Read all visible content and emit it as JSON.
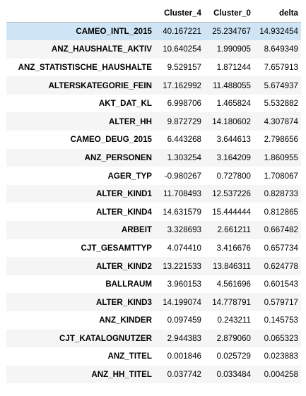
{
  "table": {
    "header": [
      "",
      "Cluster_4",
      "Cluster_0",
      "delta"
    ],
    "highlight_color": "#cfe5f5",
    "stripe_color": "#f5f5f5",
    "rows": [
      {
        "label": "CAMEO_INTL_2015",
        "cluster_4": "40.167221",
        "cluster_0": "25.234767",
        "delta": "14.932454"
      },
      {
        "label": "ANZ_HAUSHALTE_AKTIV",
        "cluster_4": "10.640254",
        "cluster_0": "1.990905",
        "delta": "8.649349"
      },
      {
        "label": "ANZ_STATISTISCHE_HAUSHALTE",
        "cluster_4": "9.529157",
        "cluster_0": "1.871244",
        "delta": "7.657913"
      },
      {
        "label": "ALTERSKATEGORIE_FEIN",
        "cluster_4": "17.162992",
        "cluster_0": "11.488055",
        "delta": "5.674937"
      },
      {
        "label": "AKT_DAT_KL",
        "cluster_4": "6.998706",
        "cluster_0": "1.465824",
        "delta": "5.532882"
      },
      {
        "label": "ALTER_HH",
        "cluster_4": "9.872729",
        "cluster_0": "14.180602",
        "delta": "4.307874"
      },
      {
        "label": "CAMEO_DEUG_2015",
        "cluster_4": "6.443268",
        "cluster_0": "3.644613",
        "delta": "2.798656"
      },
      {
        "label": "ANZ_PERSONEN",
        "cluster_4": "1.303254",
        "cluster_0": "3.164209",
        "delta": "1.860955"
      },
      {
        "label": "AGER_TYP",
        "cluster_4": "-0.980267",
        "cluster_0": "0.727800",
        "delta": "1.708067"
      },
      {
        "label": "ALTER_KIND1",
        "cluster_4": "11.708493",
        "cluster_0": "12.537226",
        "delta": "0.828733"
      },
      {
        "label": "ALTER_KIND4",
        "cluster_4": "14.631579",
        "cluster_0": "15.444444",
        "delta": "0.812865"
      },
      {
        "label": "ARBEIT",
        "cluster_4": "3.328693",
        "cluster_0": "2.661211",
        "delta": "0.667482"
      },
      {
        "label": "CJT_GESAMTTYP",
        "cluster_4": "4.074410",
        "cluster_0": "3.416676",
        "delta": "0.657734"
      },
      {
        "label": "ALTER_KIND2",
        "cluster_4": "13.221533",
        "cluster_0": "13.846311",
        "delta": "0.624778"
      },
      {
        "label": "BALLRAUM",
        "cluster_4": "3.960153",
        "cluster_0": "4.561696",
        "delta": "0.601543"
      },
      {
        "label": "ALTER_KIND3",
        "cluster_4": "14.199074",
        "cluster_0": "14.778791",
        "delta": "0.579717"
      },
      {
        "label": "ANZ_KINDER",
        "cluster_4": "0.097459",
        "cluster_0": "0.243211",
        "delta": "0.145753"
      },
      {
        "label": "CJT_KATALOGNUTZER",
        "cluster_4": "2.944383",
        "cluster_0": "2.879060",
        "delta": "0.065323"
      },
      {
        "label": "ANZ_TITEL",
        "cluster_4": "0.001846",
        "cluster_0": "0.025729",
        "delta": "0.023883"
      },
      {
        "label": "ANZ_HH_TITEL",
        "cluster_4": "0.037742",
        "cluster_0": "0.033484",
        "delta": "0.004258"
      }
    ]
  }
}
